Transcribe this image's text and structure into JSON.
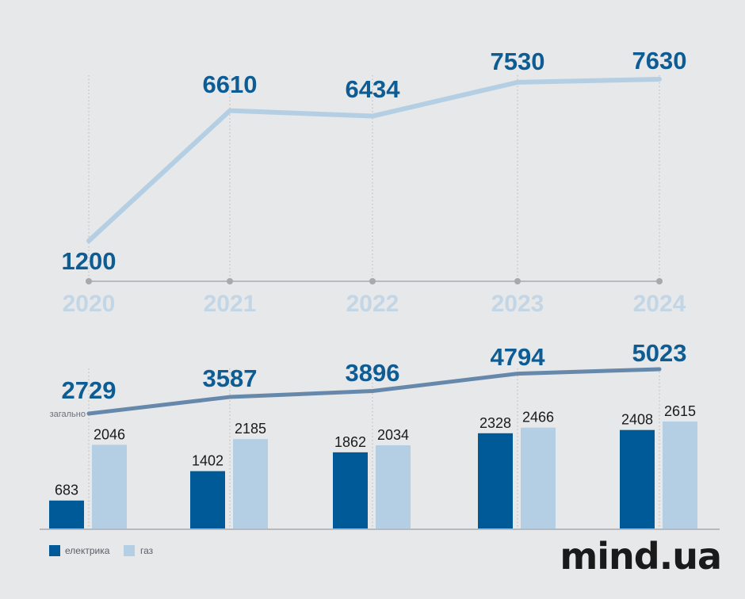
{
  "colors": {
    "background": "#e7e8ea",
    "dark_blue": "#005a98",
    "light_blue": "#b4cfe3",
    "mid_blue": "#6689ab",
    "label_blue": "#0e5c94",
    "year_text": "#c3d6e6",
    "axis_gray": "#a7a9ac",
    "guide_gray": "#b5b7ba"
  },
  "chart_data": [
    {
      "type": "line",
      "x": [
        "2020",
        "2021",
        "2022",
        "2023",
        "2024"
      ],
      "series": [
        {
          "values": [
            1200,
            6610,
            6434,
            7530,
            7630
          ]
        }
      ],
      "ylim": [
        0,
        8000
      ]
    },
    {
      "type": "bar",
      "categories": [
        "2020",
        "2021",
        "2022",
        "2023",
        "2024"
      ],
      "series": [
        {
          "name": "електрика",
          "values": [
            683,
            1402,
            1862,
            2328,
            2408
          ]
        },
        {
          "name": "газ",
          "values": [
            2046,
            2185,
            2034,
            2466,
            2615
          ]
        }
      ],
      "total": {
        "name": "загально",
        "values": [
          2729,
          3587,
          3896,
          4794,
          5023
        ]
      },
      "legend": "bottom-left"
    }
  ],
  "brand": "mind.ua"
}
